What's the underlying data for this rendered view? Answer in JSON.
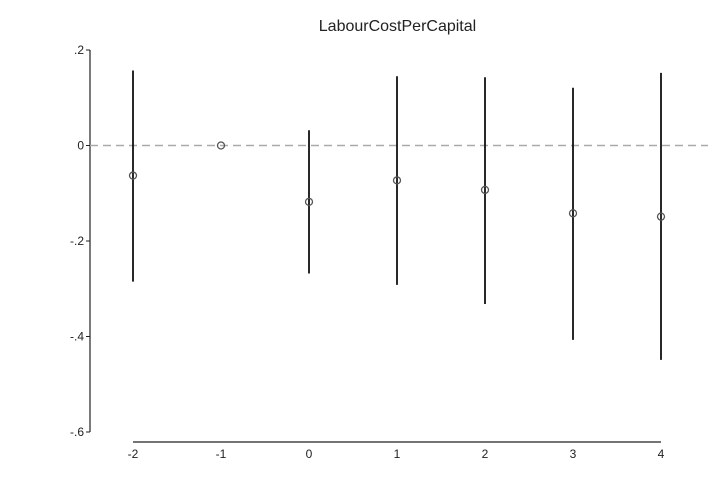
{
  "chart_data": {
    "type": "scatter",
    "title": "LabourCostPerCapital",
    "xlabel": "",
    "ylabel": "",
    "x": [
      -2,
      -1,
      0,
      1,
      2,
      3,
      4
    ],
    "estimate": [
      -0.063,
      0.0,
      -0.118,
      -0.073,
      -0.093,
      -0.142,
      -0.149
    ],
    "ci_low": [
      -0.285,
      0.0,
      -0.268,
      -0.292,
      -0.332,
      -0.407,
      -0.449
    ],
    "ci_high": [
      0.157,
      0.0,
      0.032,
      0.145,
      0.143,
      0.121,
      0.152
    ],
    "ylim": [
      -0.6,
      0.2
    ],
    "yticks": [
      0.2,
      0,
      -0.2,
      -0.4,
      -0.6
    ],
    "ytick_labels": [
      ".2",
      "0",
      "-.2",
      "-.4",
      "-.6"
    ],
    "xticks": [
      -2,
      -1,
      0,
      1,
      2,
      3,
      4
    ],
    "xtick_labels": [
      "-2",
      "-1",
      "0",
      "1",
      "2",
      "3",
      "4"
    ],
    "reference_line": 0,
    "grid": false,
    "colors": {
      "marker": "#555555",
      "ci": "#111111",
      "reference": "#aaaaaa",
      "axis": "#222222"
    }
  }
}
